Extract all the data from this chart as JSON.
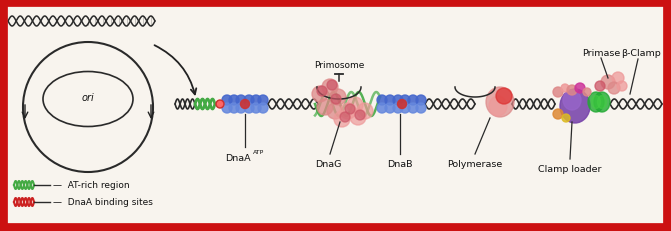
{
  "fig_width": 6.71,
  "fig_height": 2.32,
  "dpi": 100,
  "bg_color": "#f8f4ee",
  "border_color": "#cc1111",
  "border_linewidth": 7,
  "labels": {
    "ori": "ori",
    "dnaA_main": "DnaA",
    "dnaA_super": "ATP",
    "primosome": "Primosome",
    "dnaG": "DnaG",
    "dnaB": "DnaB",
    "polymerase": "Polymerase",
    "clamp_loader": "Clamp loader",
    "primase": "Primase",
    "beta_clamp": "β-Clamp",
    "legend1": "—  AT-rich region",
    "legend2": "—  DnaA binding sites"
  },
  "colors": {
    "dna_main": "#2a2a2a",
    "green_helix": "#44aa44",
    "red_helix": "#cc2222",
    "blue_blob": "#4466cc",
    "blue_blob2": "#6688dd",
    "red_blob": "#cc3333",
    "pink_blob": "#dd8888",
    "pink_blob2": "#ee9999",
    "pink_dark": "#cc5566",
    "purple_big": "#7744aa",
    "green_clamp": "#22aa33",
    "green_clamp2": "#44cc44",
    "orange_blob": "#dd8833",
    "magenta_blob": "#cc3399",
    "yellow_blob": "#ddbb22",
    "red_small": "#dd3333",
    "border": "#cc1111",
    "text": "#111111",
    "arrow_col": "#222222"
  }
}
